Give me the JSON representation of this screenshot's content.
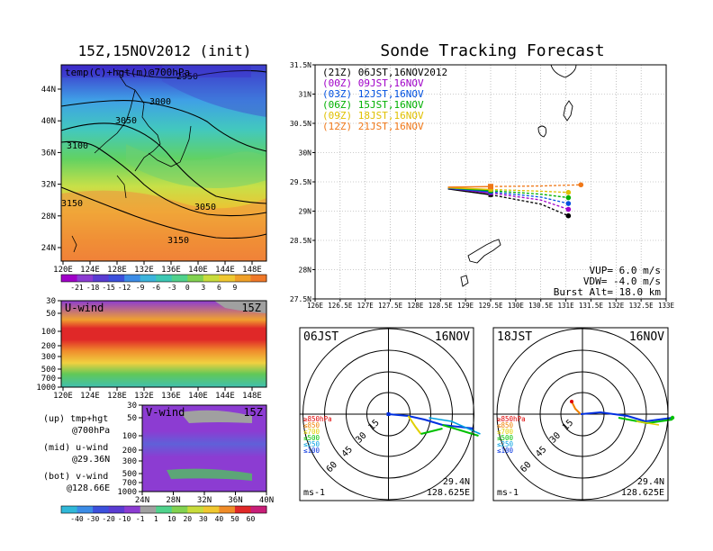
{
  "titles": {
    "left": "15Z,15NOV2012 (init)",
    "right": "Sonde Tracking Forecast"
  },
  "map_panel": {
    "label": "temp(C)+hgt(m)@700hPa",
    "x_ticks": [
      "120E",
      "124E",
      "128E",
      "132E",
      "136E",
      "140E",
      "144E",
      "148E"
    ],
    "y_ticks": [
      "24N",
      "28N",
      "32N",
      "36N",
      "40N",
      "44N"
    ],
    "contour_labels": [
      "2950",
      "3000",
      "3050",
      "3100",
      "3150",
      "3050",
      "3150"
    ],
    "colorbar": [
      "-21",
      "-18",
      "-15",
      "-12",
      "-9",
      "-6",
      "-3",
      "0",
      "3",
      "6",
      "9"
    ]
  },
  "u_panel": {
    "label": "U-wind",
    "time": "15Z",
    "y_ticks": [
      "30",
      "50",
      "100",
      "200",
      "300",
      "500",
      "700",
      "1000"
    ],
    "x_ticks": [
      "120E",
      "124E",
      "128E",
      "132E",
      "136E",
      "140E",
      "144E",
      "148E"
    ]
  },
  "v_panel": {
    "label": "V-wind",
    "time": "15Z",
    "y_ticks": [
      "30",
      "50",
      "100",
      "200",
      "300",
      "500",
      "700",
      "1000"
    ],
    "x_ticks": [
      "24N",
      "28N",
      "32N",
      "36N",
      "40N"
    ]
  },
  "left_legend": [
    {
      "label": "(up) tmp+hgt",
      "sub": "@700hPa"
    },
    {
      "label": "(mid) u-wind",
      "sub": "@29.36N"
    },
    {
      "label": "(bot) v-wind",
      "sub": "@128.66E"
    }
  ],
  "wind_colorbar": [
    "-40",
    "-30",
    "-20",
    "-10",
    "-1",
    "1",
    "10",
    "20",
    "30",
    "40",
    "50",
    "60"
  ],
  "track": {
    "x_ticks": [
      "126E",
      "126.5E",
      "127E",
      "127.5E",
      "128E",
      "128.5E",
      "129E",
      "129.5E",
      "130E",
      "130.5E",
      "131E",
      "131.5E",
      "132E",
      "132.5E",
      "133E"
    ],
    "y_ticks": [
      "27.5N",
      "28N",
      "28.5N",
      "29N",
      "29.5N",
      "30N",
      "30.5N",
      "31N",
      "31.5N"
    ],
    "legend": [
      {
        "text": "(21Z)  06JST,16NOV2012",
        "color": "#000000"
      },
      {
        "text": "(00Z)  09JST,16NOV",
        "color": "#a000c8"
      },
      {
        "text": "(03Z)  12JST,16NOV",
        "color": "#0050e0"
      },
      {
        "text": "(06Z)  15JST,16NOV",
        "color": "#00b000"
      },
      {
        "text": "(09Z)  18JST,16NOV",
        "color": "#e0c000"
      },
      {
        "text": "(12Z)  21JST,16NOV",
        "color": "#f07818"
      }
    ],
    "params": [
      "VUP=  6.0  m/s",
      "VDW= -4.0  m/s",
      "Burst Alt=  18.0  km"
    ]
  },
  "chart_data": [
    {
      "type": "line",
      "title": "Sonde Tracking Forecast",
      "xlabel": "",
      "ylabel": "",
      "xlim": [
        126,
        133
      ],
      "ylim": [
        27.5,
        31.5
      ],
      "series": [
        {
          "name": "(21Z)  06JST,16NOV2012",
          "color": "#000000",
          "x": [
            128.65,
            129.5,
            130.5,
            131.05
          ],
          "y": [
            29.38,
            29.28,
            29.12,
            28.92
          ]
        },
        {
          "name": "(00Z)  09JST,16NOV",
          "color": "#a000c8",
          "x": [
            128.65,
            129.5,
            130.5,
            131.05
          ],
          "y": [
            29.39,
            29.31,
            29.19,
            29.03
          ]
        },
        {
          "name": "(03Z)  12JST,16NOV",
          "color": "#0050e0",
          "x": [
            128.65,
            129.5,
            130.5,
            131.05
          ],
          "y": [
            29.39,
            29.33,
            29.24,
            29.13
          ]
        },
        {
          "name": "(06Z)  15JST,16NOV",
          "color": "#00b000",
          "x": [
            128.65,
            129.5,
            130.5,
            131.05
          ],
          "y": [
            29.4,
            29.35,
            29.29,
            29.23
          ]
        },
        {
          "name": "(09Z)  18JST,16NOV",
          "color": "#e0c000",
          "x": [
            128.65,
            129.5,
            130.5,
            131.05
          ],
          "y": [
            29.4,
            29.37,
            29.34,
            29.32
          ]
        },
        {
          "name": "(12Z)  21JST,16NOV",
          "color": "#f07818",
          "x": [
            128.65,
            129.5,
            130.5,
            131.3
          ],
          "y": [
            29.41,
            29.42,
            29.43,
            29.45
          ]
        }
      ],
      "launch_marker": {
        "x": 129.5,
        "y": 29.42
      }
    }
  ],
  "polar": [
    {
      "time": "06JST",
      "date": "16NOV",
      "levels": [
        "≥850hPa",
        "≤850",
        "≤700",
        "≤500",
        "≤250",
        "≤100"
      ],
      "level_colors": [
        "#e00000",
        "#f08000",
        "#e0d000",
        "#00c000",
        "#00a0e0",
        "#0030e0"
      ],
      "ring_labels": [
        "15",
        "30",
        "45",
        "60"
      ],
      "unit": "ms-1",
      "lat": "29.4N",
      "lon": "128.625E"
    },
    {
      "time": "18JST",
      "date": "16NOV",
      "levels": [
        "≥850hPa",
        "≤850",
        "≤700",
        "≤500",
        "≤250",
        "≤100"
      ],
      "level_colors": [
        "#e00000",
        "#f08000",
        "#e0d000",
        "#00c000",
        "#00a0e0",
        "#0030e0"
      ],
      "ring_labels": [
        "15",
        "30",
        "45",
        "60"
      ],
      "unit": "ms-1",
      "lat": "29.4N",
      "lon": "128.625E"
    }
  ]
}
